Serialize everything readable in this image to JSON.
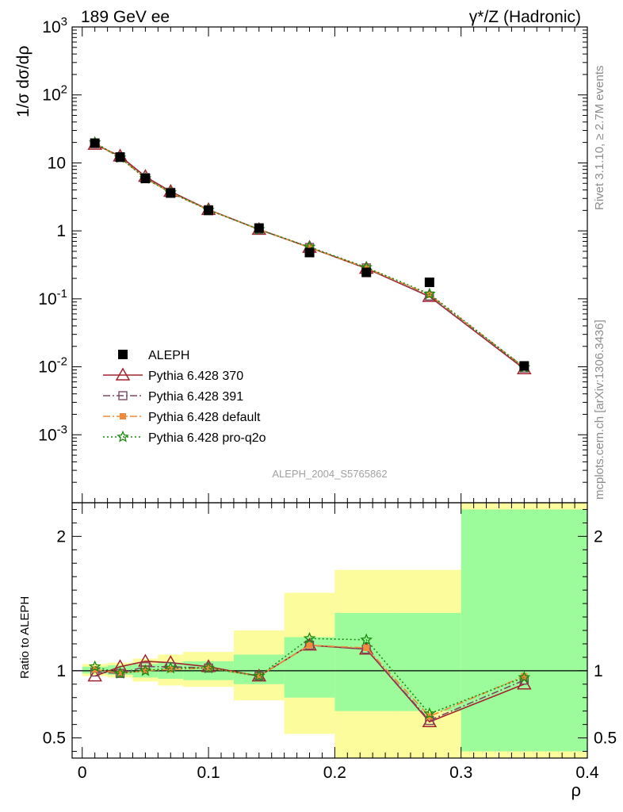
{
  "header": {
    "left": "189 GeV ee",
    "right": "γ*/Z (Hadronic)"
  },
  "side_labels": {
    "rivet": "Rivet 3.1.10, ≥ 2.7M events",
    "mcplots": "mcplots.cern.ch [arXiv:1306.3436]"
  },
  "watermark": "ALEPH_2004_S5765862",
  "colors": {
    "aleph": "#000000",
    "p370": "#a0242f",
    "p391": "#7a4a62",
    "pdefault": "#f08a3c",
    "pq2o": "#1b8a0f",
    "band_inner": "#9cfc9c",
    "band_outer": "#fcfc9c"
  },
  "chart_data": [
    {
      "type": "scatter",
      "title": "",
      "xlabel": "",
      "ylabel": "1/σ dσ/dρ",
      "yscale": "log",
      "ylim": [
        0.0001,
        1000
      ],
      "xlim": [
        -0.008,
        0.4
      ],
      "ytick_labels": [
        "10^-3",
        "10^-2",
        "10^-1",
        "1",
        "10",
        "10^2",
        "10^3"
      ],
      "legend_position": "lower-left",
      "x": [
        0.01,
        0.03,
        0.05,
        0.07,
        0.1,
        0.14,
        0.18,
        0.225,
        0.275,
        0.35
      ],
      "series": [
        {
          "name": "ALEPH",
          "key": "aleph",
          "marker": "square",
          "values": [
            19.5,
            12.2,
            5.9,
            3.6,
            2.0,
            1.1,
            0.48,
            0.245,
            0.175,
            0.0103
          ]
        },
        {
          "name": "Pythia 6.428 370",
          "key": "p370",
          "marker": "triangle",
          "line": "solid",
          "values": [
            18.7,
            12.6,
            6.3,
            3.8,
            2.05,
            1.05,
            0.57,
            0.28,
            0.108,
            0.0093
          ]
        },
        {
          "name": "Pythia 6.428 391",
          "key": "p391",
          "marker": "open-square",
          "line": "dashdot",
          "values": [
            19.3,
            12.0,
            6.1,
            3.7,
            2.05,
            1.05,
            0.57,
            0.285,
            0.11,
            0.0096
          ]
        },
        {
          "name": "Pythia 6.428 default",
          "key": "pdefault",
          "marker": "filled-square",
          "line": "dashdot",
          "values": [
            19.6,
            12.0,
            5.9,
            3.65,
            2.03,
            1.05,
            0.57,
            0.285,
            0.115,
            0.0099
          ]
        },
        {
          "name": "Pythia 6.428 pro-q2o",
          "key": "pq2o",
          "marker": "star",
          "line": "dotted",
          "values": [
            20.0,
            11.9,
            5.9,
            3.65,
            2.03,
            1.05,
            0.58,
            0.29,
            0.118,
            0.0098
          ]
        }
      ]
    },
    {
      "type": "line",
      "title": "",
      "xlabel": "ρ",
      "ylabel": "Ratio to ALEPH",
      "ylim": [
        0.35,
        2.25
      ],
      "xlim": [
        -0.008,
        0.4
      ],
      "ytick_labels": [
        "0.5",
        "1",
        "2"
      ],
      "xtick_labels": [
        "0",
        "0.1",
        "0.2",
        "0.3",
        "0.4"
      ],
      "xtick_values": [
        0,
        0.1,
        0.2,
        0.3,
        0.4
      ],
      "reference_line": 1,
      "bins": [
        [
          0,
          0.02
        ],
        [
          0.02,
          0.04
        ],
        [
          0.04,
          0.06
        ],
        [
          0.06,
          0.08
        ],
        [
          0.08,
          0.12
        ],
        [
          0.12,
          0.16
        ],
        [
          0.16,
          0.2
        ],
        [
          0.2,
          0.25
        ],
        [
          0.25,
          0.3
        ],
        [
          0.3,
          0.4
        ]
      ],
      "band_inner": [
        [
          0.98,
          1.03
        ],
        [
          0.97,
          1.04
        ],
        [
          0.95,
          1.05
        ],
        [
          0.94,
          1.06
        ],
        [
          0.93,
          1.07
        ],
        [
          0.9,
          1.12
        ],
        [
          0.8,
          1.25
        ],
        [
          0.7,
          1.43
        ],
        [
          0.7,
          1.43
        ],
        [
          0.4,
          2.2
        ]
      ],
      "band_outer": [
        [
          0.96,
          1.05
        ],
        [
          0.95,
          1.06
        ],
        [
          0.92,
          1.09
        ],
        [
          0.89,
          1.12
        ],
        [
          0.88,
          1.14
        ],
        [
          0.78,
          1.3
        ],
        [
          0.53,
          1.58
        ],
        [
          0.35,
          1.75
        ],
        [
          0.35,
          1.75
        ],
        [
          0.35,
          2.3
        ]
      ],
      "x": [
        0.01,
        0.03,
        0.05,
        0.07,
        0.1,
        0.14,
        0.18,
        0.225,
        0.275,
        0.35
      ],
      "series": [
        {
          "name": "Pythia 6.428 370",
          "key": "p370",
          "marker": "triangle",
          "line": "solid",
          "values": [
            0.96,
            1.03,
            1.07,
            1.06,
            1.03,
            0.96,
            1.19,
            1.16,
            0.62,
            0.9
          ]
        },
        {
          "name": "Pythia 6.428 391",
          "key": "p391",
          "marker": "open-square",
          "line": "dashdot",
          "values": [
            0.99,
            0.98,
            1.03,
            1.03,
            1.02,
            0.96,
            1.19,
            1.16,
            0.63,
            0.93
          ]
        },
        {
          "name": "Pythia 6.428 default",
          "key": "pdefault",
          "marker": "filled-square",
          "line": "dashdot",
          "values": [
            1.01,
            0.98,
            1.0,
            1.01,
            1.02,
            0.96,
            1.19,
            1.17,
            0.66,
            0.96
          ]
        },
        {
          "name": "Pythia 6.428 pro-q2o",
          "key": "pq2o",
          "marker": "star",
          "line": "dotted",
          "values": [
            1.03,
            0.98,
            1.0,
            1.02,
            1.02,
            0.96,
            1.24,
            1.23,
            0.68,
            0.95
          ]
        }
      ]
    }
  ]
}
